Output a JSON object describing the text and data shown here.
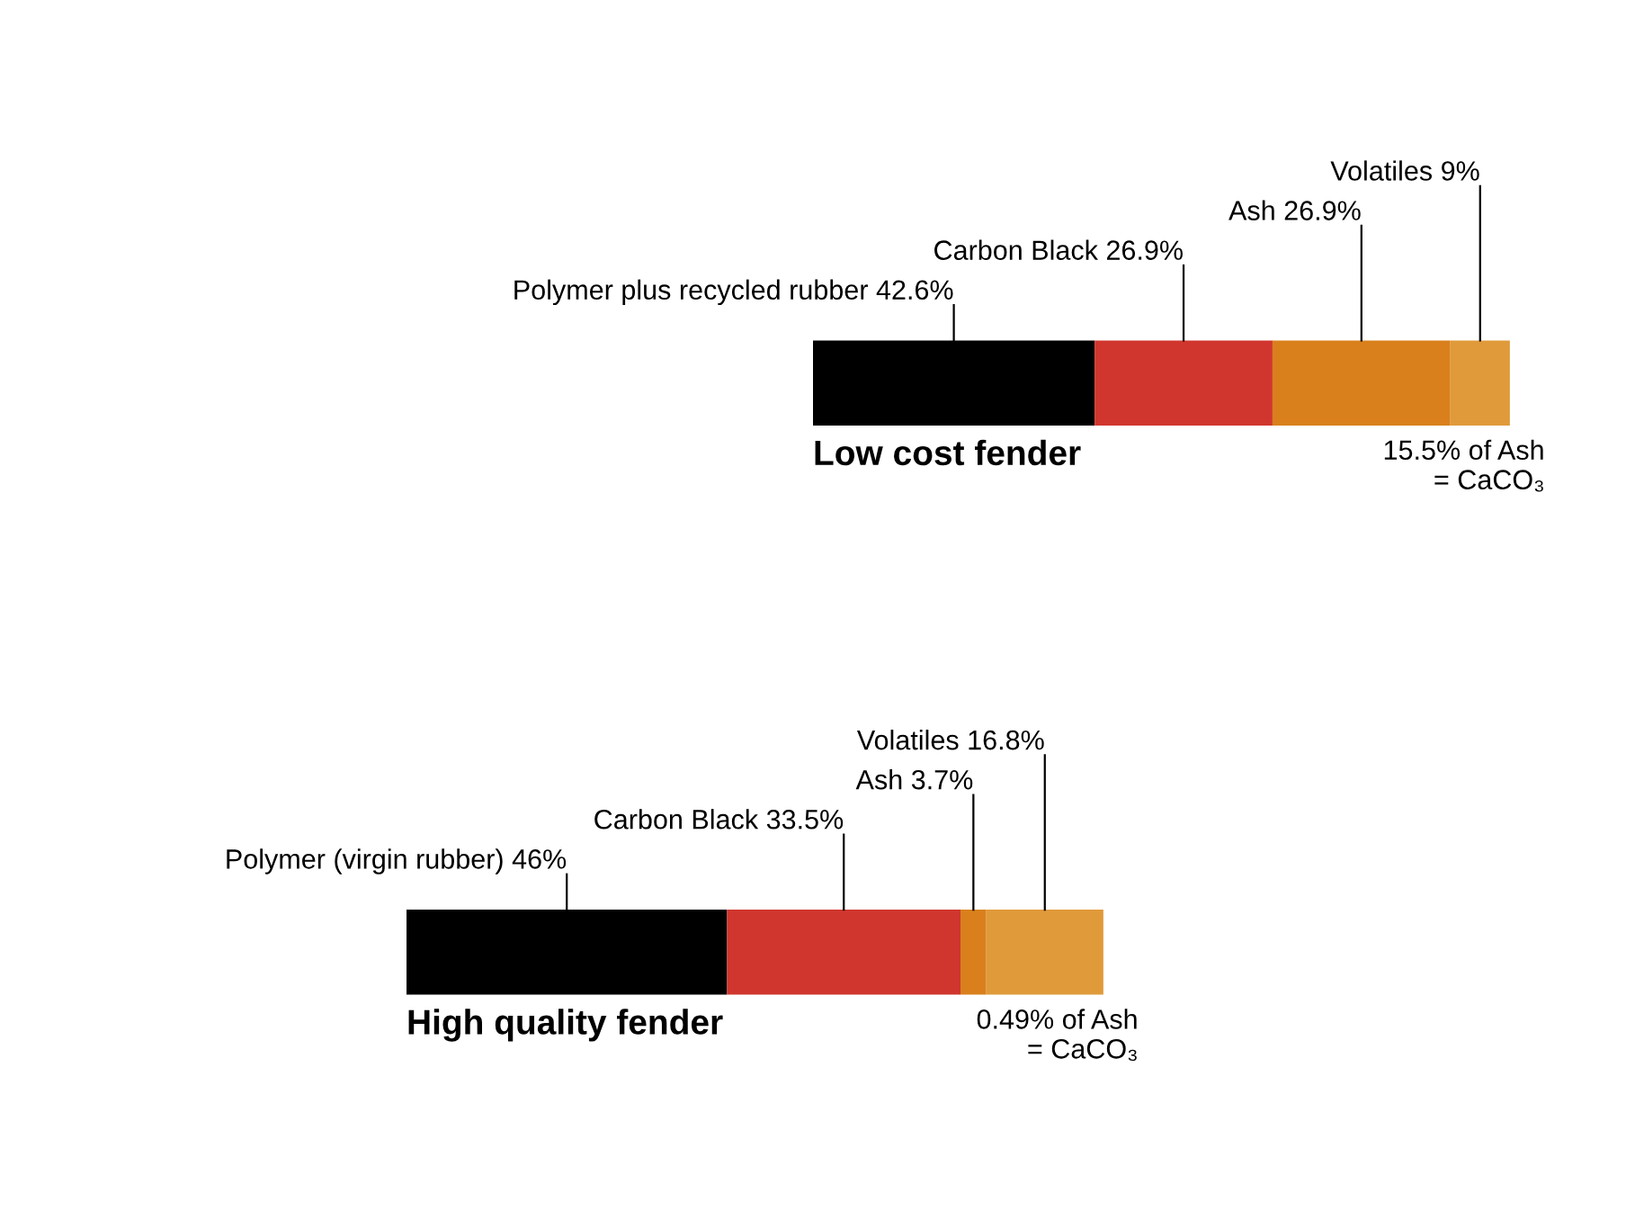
{
  "chart_data": [
    {
      "type": "bar",
      "stacked": true,
      "orientation": "horizontal",
      "title": "Low cost fender",
      "categories": [
        null
      ],
      "series": [
        {
          "color": "#000000",
          "values": [
            42.6
          ],
          "value_labels": [
            "Polymer plus recycled rubber 42.6%"
          ]
        },
        {
          "color": "#d0362e",
          "values": [
            26.9
          ],
          "value_labels": [
            "Carbon Black 26.9%"
          ]
        },
        {
          "color": "#d9801c",
          "values": [
            26.9
          ],
          "value_labels": [
            "Ash 26.9%"
          ]
        },
        {
          "color": "#e09a3a",
          "values": [
            9
          ],
          "value_labels": [
            "Volatiles 9%"
          ]
        }
      ],
      "annotations": [
        "15.5% of Ash\n= CaCO₃"
      ]
    },
    {
      "type": "bar",
      "stacked": true,
      "orientation": "horizontal",
      "title": "High quality fender",
      "categories": [
        null
      ],
      "series": [
        {
          "color": "#000000",
          "values": [
            46
          ],
          "value_labels": [
            "Polymer (virgin rubber) 46%"
          ]
        },
        {
          "color": "#d0362e",
          "values": [
            33.5
          ],
          "value_labels": [
            "Carbon Black 33.5%"
          ]
        },
        {
          "color": "#d9801c",
          "values": [
            3.7
          ],
          "value_labels": [
            "Ash 3.7%"
          ]
        },
        {
          "color": "#e09a3a",
          "values": [
            16.8
          ],
          "value_labels": [
            "Volatiles 16.8%"
          ]
        }
      ],
      "annotations": [
        "0.49% of Ash\n= CaCO₃"
      ]
    }
  ]
}
